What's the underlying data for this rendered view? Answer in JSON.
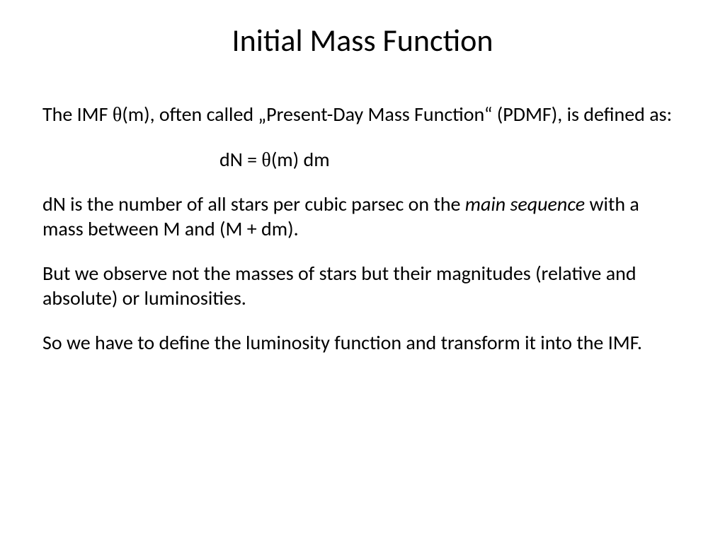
{
  "slide": {
    "title": "Initial Mass Function",
    "paragraph1_part1": "The IMF ",
    "paragraph1_theta": "θ",
    "paragraph1_part2": "(m), often called „Present-Day Mass Function“ (PDMF), is defined as:",
    "equation_part1": "dN = ",
    "equation_theta": "θ",
    "equation_part2": "(m) dm",
    "paragraph2_part1": "dN is the number of all stars per cubic parsec on the ",
    "paragraph2_italic": "main sequence",
    "paragraph2_part2": " with a mass between M and (M + dm).",
    "paragraph3": "But we observe not the masses of stars but their magnitudes (relative and absolute) or luminosities.",
    "paragraph4": "So we have to define the luminosity function and transform it into the IMF."
  },
  "styling": {
    "background_color": "#ffffff",
    "text_color": "#000000",
    "title_fontsize": 44,
    "body_fontsize": 28,
    "font_family": "Calibri"
  }
}
